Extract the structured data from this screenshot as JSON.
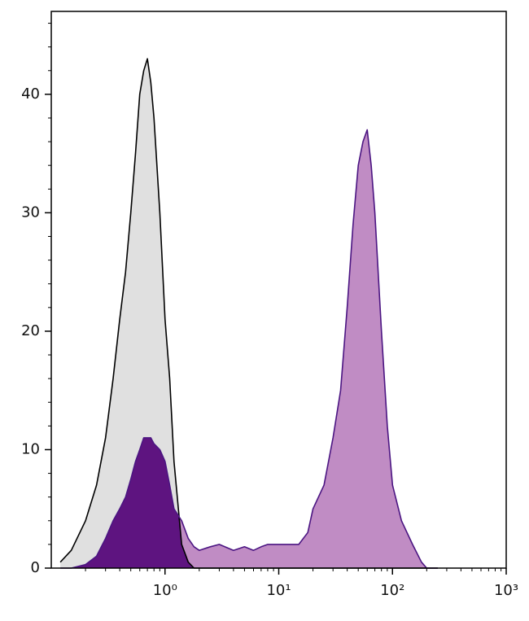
{
  "chart_data": {
    "type": "histogram_overlay",
    "xscale": "log",
    "xlim": [
      0.1,
      1000
    ],
    "ylim": [
      0,
      47
    ],
    "xticks": [
      {
        "value": 1,
        "label": "10⁰"
      },
      {
        "value": 10,
        "label": "10¹"
      },
      {
        "value": 100,
        "label": "10²"
      },
      {
        "value": 1000,
        "label": "10³"
      }
    ],
    "xminorticks": [
      0.2,
      0.3,
      0.4,
      0.5,
      0.6,
      0.7,
      0.8,
      0.9,
      2,
      3,
      4,
      5,
      6,
      7,
      8,
      9,
      20,
      30,
      40,
      50,
      60,
      70,
      80,
      90,
      200,
      300,
      400,
      500,
      600,
      700,
      800,
      900
    ],
    "yticks": [
      0,
      10,
      20,
      30,
      40
    ],
    "yminorticks": [
      2,
      4,
      6,
      8,
      12,
      14,
      16,
      18,
      22,
      24,
      26,
      28,
      32,
      34,
      36,
      38,
      42,
      44,
      46
    ],
    "x": [
      0.12,
      0.15,
      0.2,
      0.25,
      0.3,
      0.35,
      0.4,
      0.45,
      0.5,
      0.55,
      0.6,
      0.65,
      0.7,
      0.75,
      0.8,
      0.9,
      1,
      1.1,
      1.2,
      1.4,
      1.6,
      1.8,
      2,
      2.5,
      3,
      4,
      5,
      6,
      7,
      8,
      10,
      12,
      15,
      18,
      20,
      25,
      30,
      35,
      40,
      45,
      50,
      55,
      60,
      65,
      70,
      80,
      90,
      100,
      120,
      150,
      180,
      200,
      250
    ],
    "series": [
      {
        "color": "#000000",
        "fill": "#e0e0e0",
        "values": [
          0.5,
          1.5,
          4,
          7,
          11,
          16,
          21,
          25,
          30,
          35,
          40,
          42,
          43,
          41,
          38,
          30,
          21,
          16,
          9,
          2,
          0.5,
          0,
          0,
          0,
          0,
          0,
          0,
          0,
          0,
          0,
          0,
          0,
          0,
          0,
          0,
          0,
          0,
          0,
          0,
          0,
          0,
          0,
          0,
          0,
          0,
          0,
          0,
          0,
          0,
          0,
          0,
          0,
          0
        ]
      },
      {
        "color": "#4b1582",
        "fill": "#c08cc4",
        "overlap_fill": "#5e1480",
        "values": [
          0,
          0,
          0.3,
          1,
          2.5,
          4,
          5,
          6,
          7.5,
          9,
          10,
          11,
          11,
          11,
          10.5,
          10,
          9,
          7,
          5,
          4,
          2.5,
          1.8,
          1.5,
          1.8,
          2,
          1.5,
          1.8,
          1.5,
          1.8,
          2,
          2,
          2,
          2,
          3,
          5,
          7,
          11,
          15,
          22,
          29,
          34,
          36,
          37,
          34,
          30,
          20,
          12,
          7,
          4,
          2,
          0.5,
          0,
          0
        ]
      }
    ]
  }
}
